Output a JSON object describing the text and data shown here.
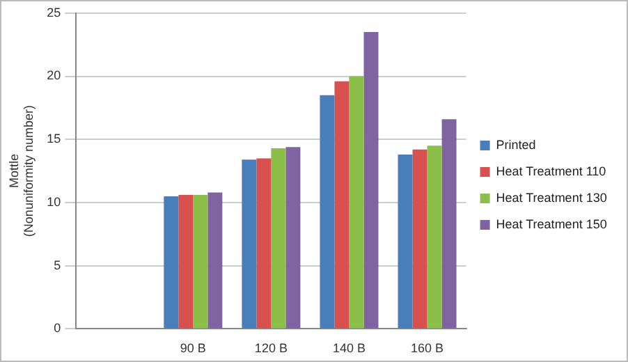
{
  "chart_data": {
    "type": "bar",
    "ylabel": "Mottle\n(Nonuniformity number)",
    "categories": [
      null,
      "90 B",
      "120 B",
      "140 B",
      "160 B"
    ],
    "series": [
      {
        "name": "Printed",
        "color": "#4a7ebb",
        "values": [
          null,
          10.5,
          13.4,
          18.5,
          13.8
        ]
      },
      {
        "name": "Heat Treatment 110",
        "color": "#d9514e",
        "values": [
          null,
          10.6,
          13.5,
          19.6,
          14.2
        ]
      },
      {
        "name": "Heat Treatment 130",
        "color": "#8cbf4a",
        "values": [
          null,
          10.6,
          14.3,
          20.0,
          14.5
        ]
      },
      {
        "name": "Heat Treatment 150",
        "color": "#8064a2",
        "values": [
          null,
          10.8,
          14.4,
          23.5,
          16.6
        ]
      }
    ],
    "ylim": [
      0,
      25
    ],
    "yticks": [
      0,
      5,
      10,
      15,
      20,
      25
    ],
    "grid": "y",
    "legend": "right"
  }
}
